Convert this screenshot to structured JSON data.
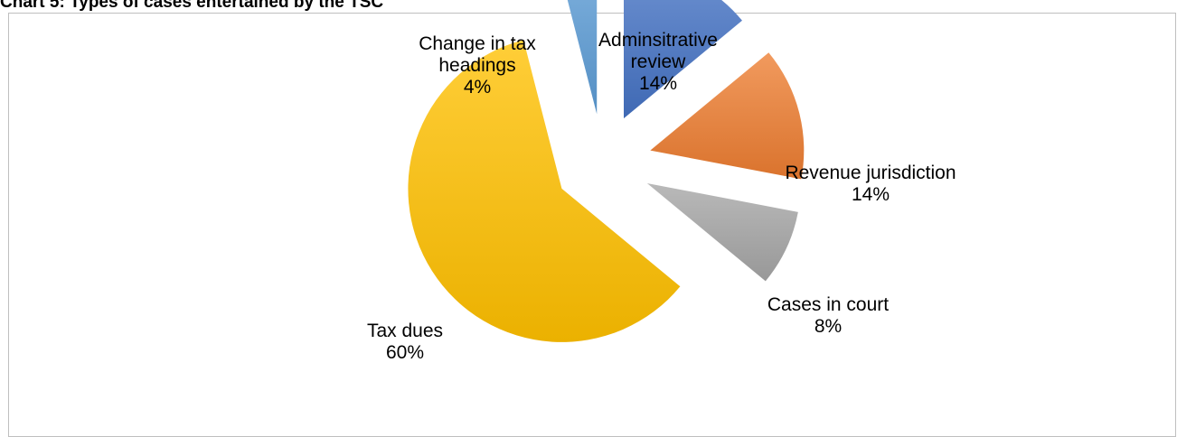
{
  "chart_data": {
    "type": "pie",
    "title": "Chart 5: Types of cases entertained by the TSC",
    "exploded": true,
    "slices": [
      {
        "name": "Adminsitrative review",
        "label_lines": [
          "Adminsitrative",
          "review"
        ],
        "value": 14,
        "value_label": "14%",
        "color": "#4472C4"
      },
      {
        "name": "Revenue jurisdiction",
        "label_lines": [
          "Revenue jurisdiction"
        ],
        "value": 14,
        "value_label": "14%",
        "color": "#ED7D31"
      },
      {
        "name": "Cases in court",
        "label_lines": [
          "Cases in court"
        ],
        "value": 8,
        "value_label": "8%",
        "color": "#A5A5A5"
      },
      {
        "name": "Tax dues",
        "label_lines": [
          "Tax dues"
        ],
        "value": 60,
        "value_label": "60%",
        "color": "#FFC000"
      },
      {
        "name": "Change in tax headings",
        "label_lines": [
          "Change in tax",
          "headings"
        ],
        "value": 4,
        "value_label": "4%",
        "color": "#5B9BD5"
      }
    ],
    "legend": "none"
  }
}
